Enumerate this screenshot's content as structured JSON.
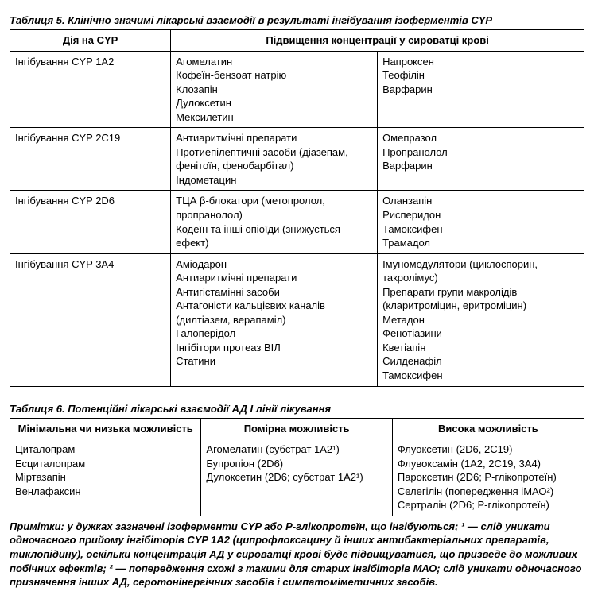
{
  "table5": {
    "title": "Таблиця 5. Клінічно значимі лікарські взаємодії в результаті інгібування ізоферментів CYP",
    "header_col1": "Дія на CYP",
    "header_span": "Підвищення концентрації у сироватці крові",
    "rows": [
      {
        "action": "Інгібування CYP 1A2",
        "colA": "Агомелатин\nКофеїн-бензоат натрію\nКлозапін\nДулоксетин\nМексилетин",
        "colB": "Напроксен\nТеофілін\nВарфарин"
      },
      {
        "action": "Інгібування CYP 2C19",
        "colA": "Антиаритмічні препарати\nПротиепілептичні засоби (діазепам, фенітоїн, фенобарбітал)\nІндометацин",
        "colB": "Омепразол\nПропранолол\nВарфарин"
      },
      {
        "action": "Інгібування CYP 2D6",
        "colA": "ТЦА β-блокатори (метопролол, пропранолол)\nКодеїн та інші опіоїди (знижується ефект)",
        "colB": "Оланзапін\nРисперидон\nТамоксифен\nТрамадол"
      },
      {
        "action": "Інгібування CYP 3A4",
        "colA": "Аміодарон\nАнтиаритмічні препарати\nАнтигістамінні засоби\nАнтагоністи кальцієвих каналів (дилтіазем, верапаміл)\nГалоперідол\nІнгібітори протеаз ВІЛ\nСтатини",
        "colB": "Імуномодулятори (циклоспорин, такролімус)\nПрепарати групи макролідів (кларитроміцин, еритроміцин)\nМетадон\nФенотіазини\nКветіапін\nСилденафіл\nТамоксифен"
      }
    ]
  },
  "table6": {
    "title": "Таблиця 6. Потенційні лікарські взаємодії АД I лінії лікування",
    "headers": {
      "c1": "Мінімальна чи низька можливість",
      "c2": "Помірна можливість",
      "c3": "Висока можливість"
    },
    "row": {
      "c1": "Циталопрам\nЕсциталопрам\nМіртазапін\nВенлафаксин",
      "c2": "Агомелатин (субстрат 1A2¹)\nБупропіон (2D6)\nДулоксетин (2D6; субстрат 1A2¹)",
      "c3": "Флуоксетин (2D6, 2C19)\nФлувоксамін (1A2, 2C19, 3A4)\nПароксетин (2D6; Р-глікопротеїн)\nСелегілін (попередження іМАО²)\nСертралін (2D6; Р-глікопротеїн)"
    }
  },
  "notes": "Примітки: у дужках зазначені ізоферменти CYP або Р-глікопротеїн, що інгібуються; ¹ — слід уникати одночасного прийому інгібіторів CYP 1A2 (ципрофлоксацину й інших антибактеріальних препаратів, тиклопідину), оскільки концентрація АД у сироватці крові буде підвищуватися, що призведе до можливих побічних ефектів; ² — попередження схожі з такими для старих інгібіторів МАО; слід уникати одночасного призначення інших АД, серотонінергічних засобів і симпатоміметичних засобів."
}
